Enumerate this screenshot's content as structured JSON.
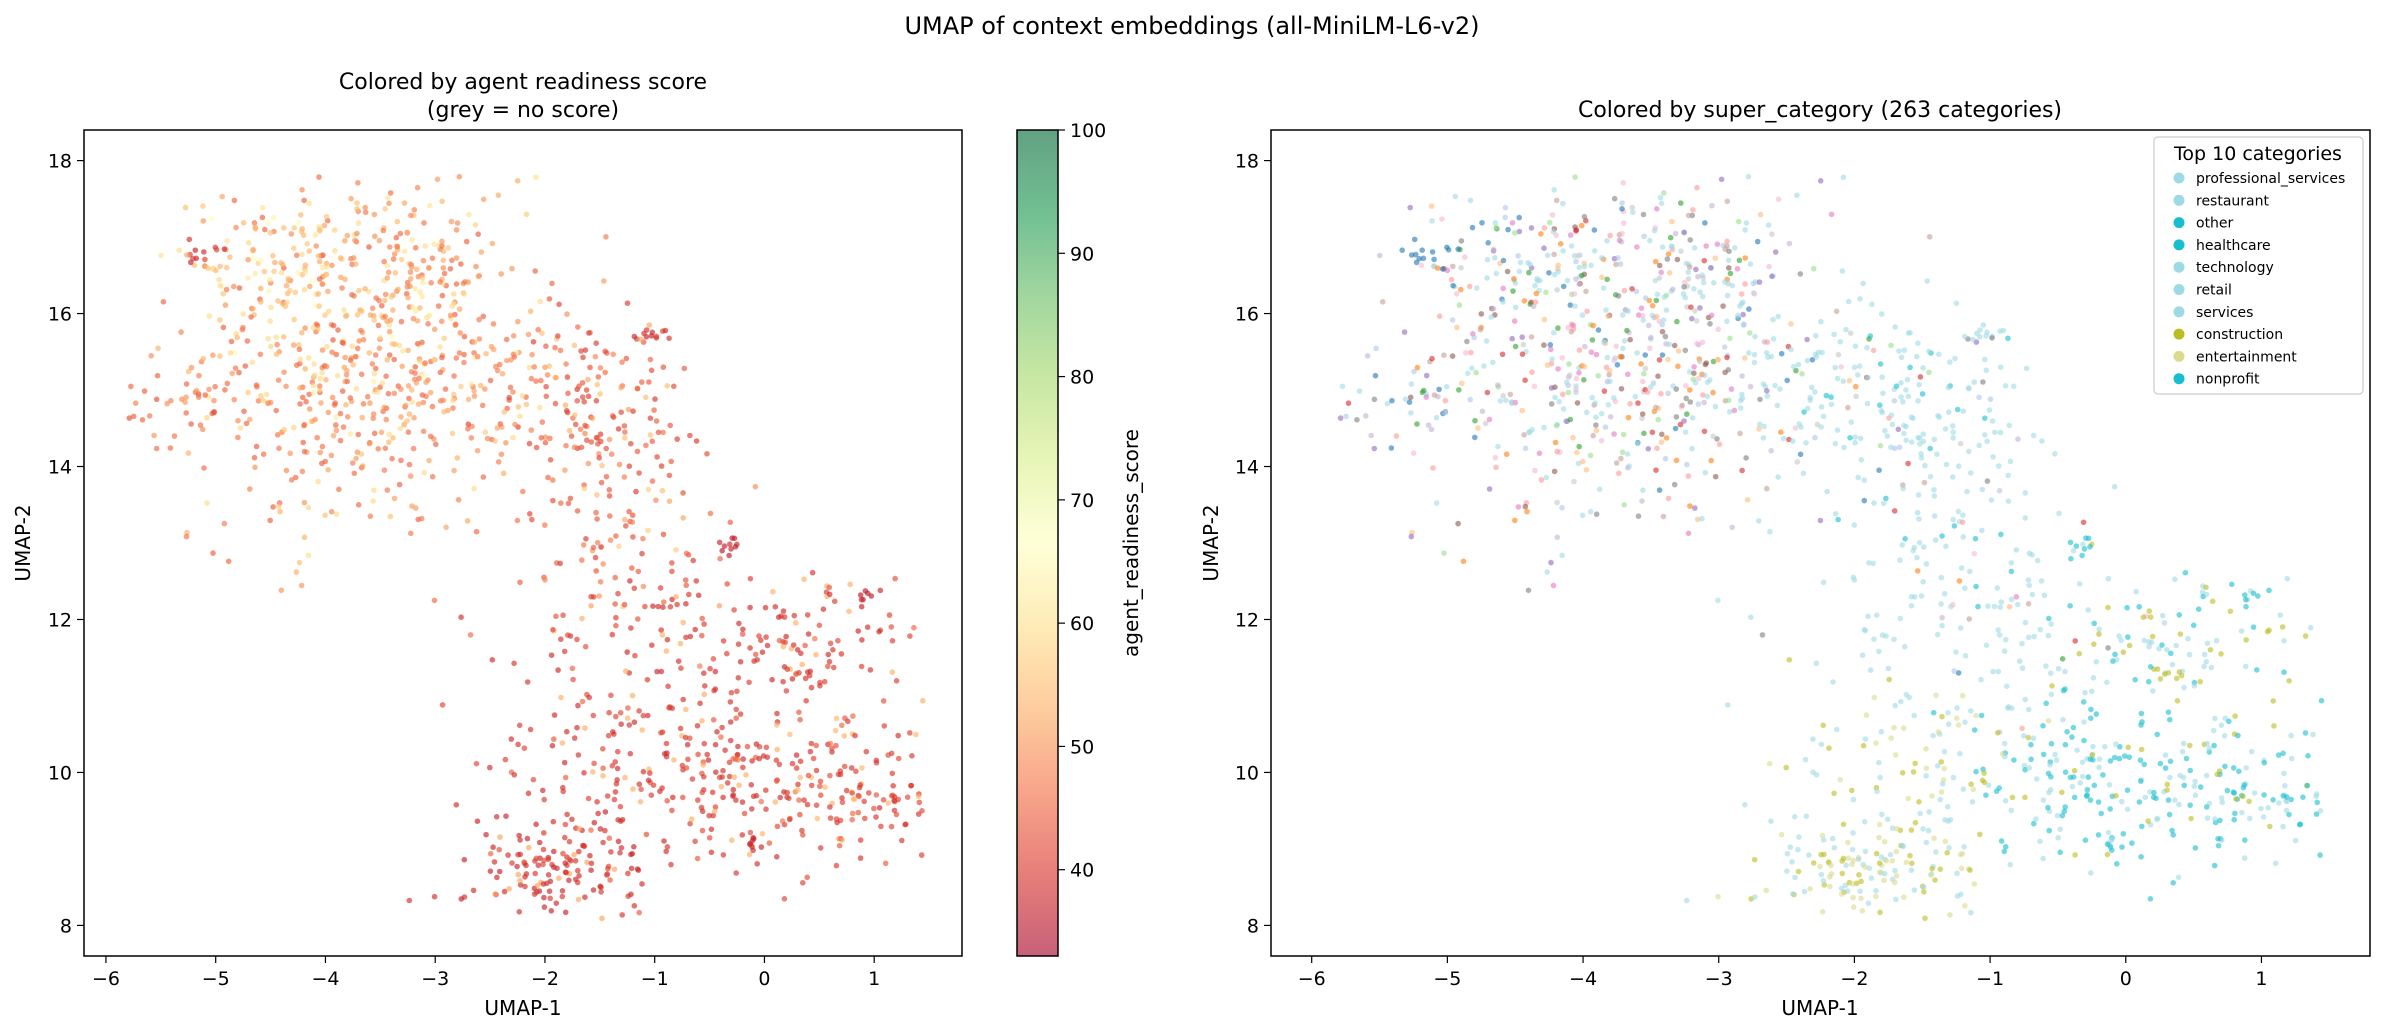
{
  "suptitle": "UMAP of context embeddings (all-MiniLM-L6-v2)",
  "chart_data": [
    {
      "type": "scatter",
      "title_line1": "Colored by agent readiness score",
      "title_line2": "(grey = no score)",
      "xlabel": "UMAP-1",
      "ylabel": "UMAP-2",
      "xlim": [
        -6.2,
        1.8
      ],
      "ylim": [
        7.6,
        18.4
      ],
      "xticks": [
        -6,
        -5,
        -4,
        -3,
        -2,
        -1,
        0,
        1
      ],
      "yticks": [
        8,
        10,
        12,
        14,
        16,
        18
      ],
      "point_alpha": 0.65,
      "colorbar": {
        "label": "agent_readiness_score",
        "range": [
          33,
          100
        ],
        "ticks": [
          40,
          50,
          60,
          70,
          80,
          90,
          100
        ],
        "colormap": "RdYlGn",
        "colors": [
          "#a50026",
          "#d73027",
          "#f46d43",
          "#fdae61",
          "#fee08b",
          "#ffffbf",
          "#d9ef8b",
          "#a6d96a",
          "#66bd63",
          "#1a9850",
          "#006837"
        ]
      },
      "clusters": [
        {
          "x": -3.7,
          "y": 15.4,
          "sx": 0.75,
          "sy": 1.2,
          "n": 560,
          "score_mean": 44,
          "score_sd": 9
        },
        {
          "x": -4.4,
          "y": 16.6,
          "sx": 0.35,
          "sy": 0.5,
          "n": 90,
          "score_mean": 52,
          "score_sd": 7
        },
        {
          "x": -3.2,
          "y": 16.6,
          "sx": 0.4,
          "sy": 0.7,
          "n": 90,
          "score_mean": 46,
          "score_sd": 8
        },
        {
          "x": -2.3,
          "y": 15.1,
          "sx": 0.35,
          "sy": 0.55,
          "n": 60,
          "score_mean": 44,
          "score_sd": 8
        },
        {
          "x": -1.5,
          "y": 14.7,
          "sx": 0.4,
          "sy": 0.6,
          "n": 140,
          "score_mean": 40,
          "score_sd": 6
        },
        {
          "x": -5.3,
          "y": 14.8,
          "sx": 0.28,
          "sy": 0.2,
          "n": 30,
          "score_mean": 42,
          "score_sd": 6
        },
        {
          "x": -5.15,
          "y": 16.75,
          "sx": 0.08,
          "sy": 0.08,
          "n": 12,
          "score_mean": 37,
          "score_sd": 3
        },
        {
          "x": -1.0,
          "y": 15.75,
          "sx": 0.08,
          "sy": 0.06,
          "n": 12,
          "score_mean": 37,
          "score_sd": 3
        },
        {
          "x": -1.3,
          "y": 13.1,
          "sx": 0.5,
          "sy": 0.55,
          "n": 60,
          "score_mean": 42,
          "score_sd": 6
        },
        {
          "x": -1.0,
          "y": 11.7,
          "sx": 0.55,
          "sy": 0.7,
          "n": 110,
          "score_mean": 38,
          "score_sd": 4
        },
        {
          "x": 0.3,
          "y": 11.6,
          "sx": 0.45,
          "sy": 0.5,
          "n": 100,
          "score_mean": 38,
          "score_sd": 4
        },
        {
          "x": -0.3,
          "y": 9.9,
          "sx": 0.55,
          "sy": 0.5,
          "n": 150,
          "score_mean": 38,
          "score_sd": 4
        },
        {
          "x": 0.8,
          "y": 9.7,
          "sx": 0.4,
          "sy": 0.5,
          "n": 120,
          "score_mean": 39,
          "score_sd": 4
        },
        {
          "x": -1.6,
          "y": 10.2,
          "sx": 0.45,
          "sy": 0.55,
          "n": 80,
          "score_mean": 38,
          "score_sd": 4
        },
        {
          "x": -1.9,
          "y": 8.7,
          "sx": 0.4,
          "sy": 0.4,
          "n": 160,
          "score_mean": 37,
          "score_sd": 3
        },
        {
          "x": -0.3,
          "y": 12.95,
          "sx": 0.06,
          "sy": 0.08,
          "n": 10,
          "score_mean": 36,
          "score_sd": 2
        },
        {
          "x": 0.95,
          "y": 12.3,
          "sx": 0.05,
          "sy": 0.05,
          "n": 8,
          "score_mean": 36,
          "score_sd": 2
        },
        {
          "x": -0.1,
          "y": 9.05,
          "sx": 0.05,
          "sy": 0.04,
          "n": 8,
          "score_mean": 36,
          "score_sd": 2
        }
      ]
    },
    {
      "type": "scatter",
      "title": "Colored by super_category (263 categories)",
      "xlabel": "UMAP-1",
      "ylabel": "UMAP-2",
      "xlim": [
        -6.3,
        1.8
      ],
      "ylim": [
        7.6,
        18.4
      ],
      "xticks": [
        -6,
        -5,
        -4,
        -3,
        -2,
        -1,
        0,
        1
      ],
      "yticks": [
        8,
        10,
        12,
        14,
        16,
        18
      ],
      "legend": {
        "title": "Top 10 categories",
        "placement": "upper right",
        "entries": [
          {
            "label": "professional_services",
            "color": "#9edae5"
          },
          {
            "label": "restaurant",
            "color": "#9edae5"
          },
          {
            "label": "other",
            "color": "#17becf"
          },
          {
            "label": "healthcare",
            "color": "#17becf"
          },
          {
            "label": "technology",
            "color": "#9edae5"
          },
          {
            "label": "retail",
            "color": "#9edae5"
          },
          {
            "label": "services",
            "color": "#9edae5"
          },
          {
            "label": "construction",
            "color": "#bcbd22"
          },
          {
            "label": "entertainment",
            "color": "#dbdb8d"
          },
          {
            "label": "nonprofit",
            "color": "#17becf"
          }
        ]
      },
      "other_palette": [
        "#1f77b4",
        "#aec7e8",
        "#ff7f0e",
        "#ffbb78",
        "#2ca02c",
        "#98df8a",
        "#d62728",
        "#ff9896",
        "#9467bd",
        "#c5b0d5",
        "#8c564b",
        "#c49c94",
        "#e377c2",
        "#f7b6d2",
        "#7f7f7f",
        "#c7c7c7"
      ],
      "clusters": [
        {
          "x": -3.7,
          "y": 15.4,
          "sx": 0.75,
          "sy": 1.2,
          "n": 560,
          "mix": "other"
        },
        {
          "x": -4.4,
          "y": 16.6,
          "sx": 0.35,
          "sy": 0.5,
          "n": 90,
          "mix": "other"
        },
        {
          "x": -3.2,
          "y": 16.6,
          "sx": 0.4,
          "sy": 0.7,
          "n": 90,
          "mix": "other"
        },
        {
          "x": -2.3,
          "y": 15.1,
          "sx": 0.35,
          "sy": 0.55,
          "n": 60,
          "mix": "light"
        },
        {
          "x": -1.5,
          "y": 14.7,
          "sx": 0.4,
          "sy": 0.6,
          "n": 140,
          "mix": "light"
        },
        {
          "x": -5.3,
          "y": 14.8,
          "sx": 0.28,
          "sy": 0.2,
          "n": 30,
          "mix": "other"
        },
        {
          "x": -5.15,
          "y": 16.75,
          "sx": 0.08,
          "sy": 0.08,
          "n": 12,
          "mix": "blue"
        },
        {
          "x": -1.0,
          "y": 15.75,
          "sx": 0.08,
          "sy": 0.06,
          "n": 12,
          "mix": "light"
        },
        {
          "x": -1.3,
          "y": 13.1,
          "sx": 0.5,
          "sy": 0.55,
          "n": 60,
          "mix": "light"
        },
        {
          "x": -1.0,
          "y": 11.7,
          "sx": 0.55,
          "sy": 0.7,
          "n": 110,
          "mix": "light"
        },
        {
          "x": 0.3,
          "y": 11.6,
          "sx": 0.45,
          "sy": 0.5,
          "n": 100,
          "mix": "olive"
        },
        {
          "x": -0.3,
          "y": 9.9,
          "sx": 0.55,
          "sy": 0.5,
          "n": 150,
          "mix": "cyan"
        },
        {
          "x": 0.8,
          "y": 9.7,
          "sx": 0.4,
          "sy": 0.5,
          "n": 120,
          "mix": "cyan"
        },
        {
          "x": -1.6,
          "y": 10.2,
          "sx": 0.45,
          "sy": 0.55,
          "n": 80,
          "mix": "lightolive"
        },
        {
          "x": -1.9,
          "y": 8.7,
          "sx": 0.4,
          "sy": 0.4,
          "n": 160,
          "mix": "lightolive"
        },
        {
          "x": -0.3,
          "y": 12.95,
          "sx": 0.06,
          "sy": 0.08,
          "n": 10,
          "mix": "cyan"
        },
        {
          "x": 0.95,
          "y": 12.3,
          "sx": 0.05,
          "sy": 0.05,
          "n": 8,
          "mix": "cyan"
        },
        {
          "x": -0.1,
          "y": 9.05,
          "sx": 0.05,
          "sy": 0.04,
          "n": 8,
          "mix": "cyan"
        }
      ]
    }
  ]
}
